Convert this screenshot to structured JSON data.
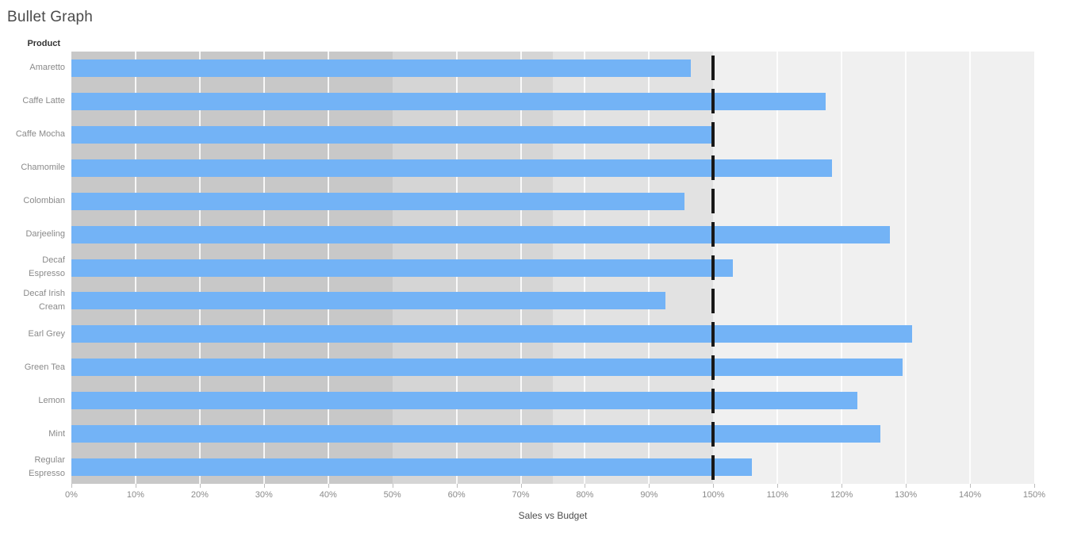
{
  "title": "Bullet Graph",
  "row_header": "Product",
  "axis": {
    "label": "Sales vs Budget",
    "min_pct": 0,
    "max_pct": 150,
    "tick_step_pct": 10
  },
  "colors": {
    "bar": "#73b3f6",
    "reference_line": "#181818",
    "band_0_50": "#c8c8c8",
    "band_50_75": "#d5d5d5",
    "band_75_100": "#e2e2e2",
    "plot_background": "#f0f0f0",
    "gridline": "#ffffff",
    "title_text": "#4b4b4b",
    "label_text": "#8a8a8a",
    "header_text": "#333333"
  },
  "chart_data": {
    "type": "bar",
    "subtype": "bullet",
    "orientation": "horizontal",
    "title": "Bullet Graph",
    "xlabel": "Sales vs Budget",
    "ylabel": "Product",
    "xlim": [
      0,
      150
    ],
    "grid": true,
    "x_tick_labels": [
      "0%",
      "10%",
      "20%",
      "30%",
      "40%",
      "50%",
      "60%",
      "70%",
      "80%",
      "90%",
      "100%",
      "110%",
      "120%",
      "130%",
      "140%",
      "150%"
    ],
    "reference_line_pct": 100,
    "qualitative_bands_pct": [
      [
        0,
        50
      ],
      [
        50,
        75
      ],
      [
        75,
        100
      ]
    ],
    "categories": [
      "Amaretto",
      "Caffe Latte",
      "Caffe Mocha",
      "Chamomile",
      "Colombian",
      "Darjeeling",
      "Decaf Espresso",
      "Decaf Irish Cream",
      "Earl Grey",
      "Green Tea",
      "Lemon",
      "Mint",
      "Regular Espresso"
    ],
    "values": [
      96.5,
      117.5,
      100,
      118.5,
      95.5,
      127.5,
      103,
      92.5,
      131,
      129.5,
      122.5,
      126,
      106
    ]
  }
}
